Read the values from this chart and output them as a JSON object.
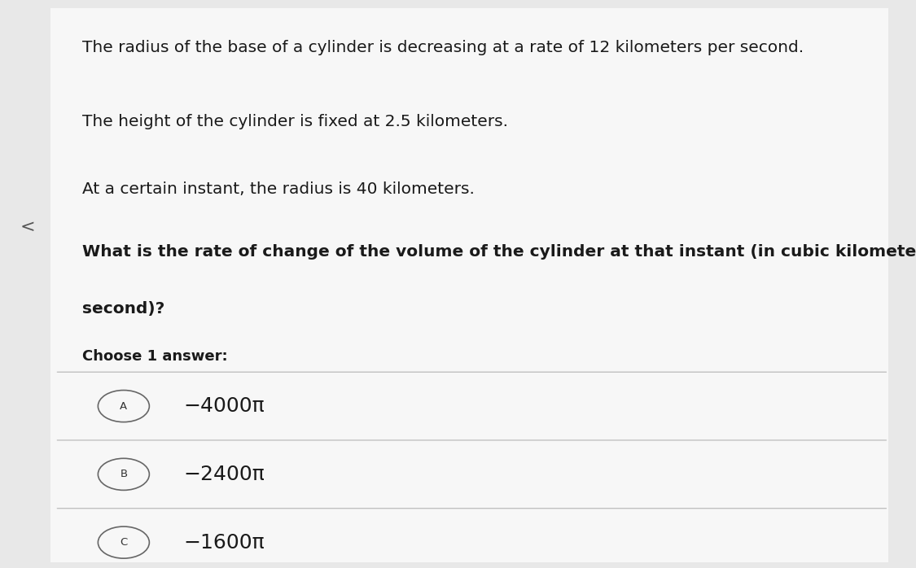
{
  "background_color": "#e8e8e8",
  "panel_color": "#f7f7f7",
  "text_color": "#1a1a1a",
  "line1": "The radius of the base of a cylinder is decreasing at a rate of 12 kilometers per second.",
  "line2": "The height of the cylinder is fixed at 2.5 kilometers.",
  "line3": "At a certain instant, the radius is 40 kilometers.",
  "question_line1": "What is the rate of change of the volume of the cylinder at that instant (in cubic kilometers per",
  "question_line2": "second)?",
  "choose_label": "Choose 1 answer:",
  "arrow_char": "<",
  "answers": [
    {
      "label": "A",
      "text": "−4000π"
    },
    {
      "label": "B",
      "text": "−2400π"
    },
    {
      "label": "C",
      "text": "−1600π"
    }
  ],
  "divider_color": "#bbbbbb",
  "circle_edge_color": "#666666",
  "circle_face_color": "#f7f7f7",
  "body_font_size": 14.5,
  "question_font_size": 14.5,
  "choose_font_size": 13,
  "answer_font_size": 18
}
